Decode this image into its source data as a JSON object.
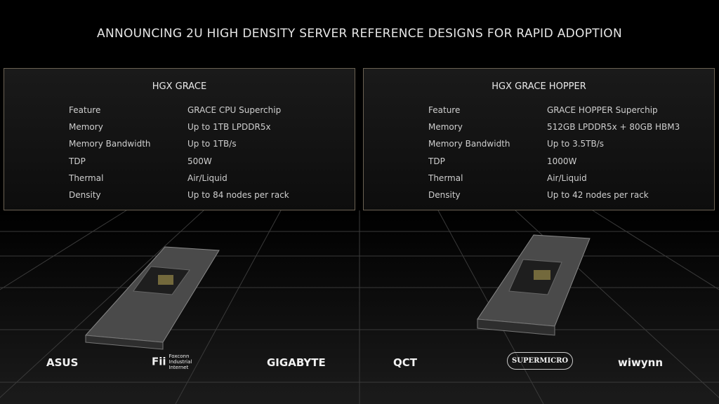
{
  "header": {
    "title": "ANNOUNCING 2U HIGH DENSITY SERVER REFERENCE DESIGNS FOR RAPID ADOPTION"
  },
  "panels": [
    {
      "title": "HGX GRACE",
      "rows": [
        [
          "Feature",
          "GRACE CPU Superchip"
        ],
        [
          "Memory",
          "Up to 1TB LPDDR5x"
        ],
        [
          "Memory Bandwidth",
          "Up to 1TB/s"
        ],
        [
          "TDP",
          "500W"
        ],
        [
          "Thermal",
          "Air/Liquid"
        ],
        [
          "Density",
          "Up to 84 nodes per rack"
        ]
      ]
    },
    {
      "title": "HGX GRACE HOPPER",
      "rows": [
        [
          "Feature",
          "GRACE HOPPER Superchip"
        ],
        [
          "Memory",
          "512GB LPDDR5x + 80GB HBM3"
        ],
        [
          "Memory Bandwidth",
          "Up to 3.5TB/s"
        ],
        [
          "TDP",
          "1000W"
        ],
        [
          "Thermal",
          "Air/Liquid"
        ],
        [
          "Density",
          "Up to 42 nodes per rack"
        ]
      ]
    }
  ],
  "logos": [
    {
      "name": "ASUS"
    },
    {
      "name": "Fii",
      "sub": "Foxconn Industrial Internet"
    },
    {
      "name": "GIGABYTE"
    },
    {
      "name": "QCT"
    },
    {
      "name": "SUPERMICRO"
    },
    {
      "name": "wiwynn"
    }
  ]
}
